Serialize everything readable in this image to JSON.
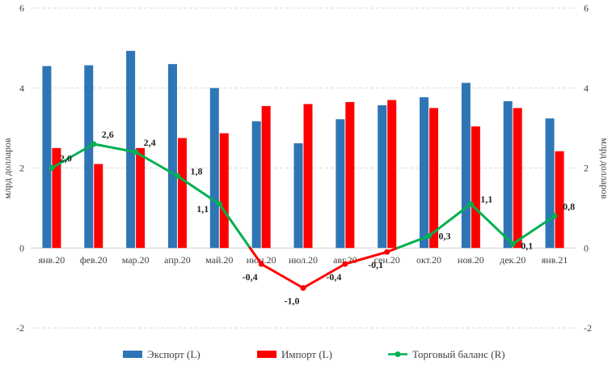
{
  "chart_data": {
    "type": "bar",
    "categories": [
      "янв.20",
      "фев.20",
      "мар.20",
      "апр.20",
      "май.20",
      "июн.20",
      "июл.20",
      "авг.20",
      "сен.20",
      "окт.20",
      "ноя.20",
      "дек.20",
      "янв.21"
    ],
    "series": [
      {
        "name": "Экспорт (L)",
        "type": "bar",
        "axis": "left",
        "color": "#2E75B6",
        "values": [
          4.55,
          4.57,
          4.93,
          4.6,
          4.0,
          3.17,
          2.62,
          3.22,
          3.57,
          3.77,
          4.13,
          3.67,
          3.24
        ]
      },
      {
        "name": "Импорт (L)",
        "type": "bar",
        "axis": "left",
        "color": "#FF0000",
        "values": [
          2.5,
          2.1,
          2.5,
          2.75,
          2.87,
          3.55,
          3.6,
          3.65,
          3.7,
          3.5,
          3.04,
          3.5,
          2.42
        ]
      },
      {
        "name": "Торговый баланс (R)",
        "type": "line",
        "axis": "right",
        "color": "#00B050",
        "negative_color": "#FF0000",
        "values": [
          2.0,
          2.6,
          2.4,
          1.8,
          1.1,
          -0.4,
          -1.0,
          -0.4,
          -0.1,
          0.3,
          1.1,
          0.1,
          0.8
        ],
        "labels": [
          "2,0",
          "2,6",
          "2,4",
          "1,8",
          "1,1",
          "-0,4",
          "-1,0",
          "-0,4",
          "-0,1",
          "0,3",
          "1,1",
          "0,1",
          "0,8"
        ]
      }
    ],
    "y_left": {
      "label": "млрд долларов",
      "ylim": [
        -2,
        6
      ],
      "ticks": [
        -2,
        0,
        2,
        4,
        6
      ],
      "tick_labels": [
        "-2",
        "0",
        "2",
        "4",
        "6"
      ]
    },
    "y_right": {
      "label": "млрд долларов",
      "ylim": [
        -2,
        6
      ],
      "ticks": [
        -2,
        0,
        2,
        4,
        6
      ],
      "tick_labels": [
        "-2",
        "0",
        "2",
        "4",
        "6"
      ]
    },
    "grid": true,
    "legend_position": "bottom"
  }
}
